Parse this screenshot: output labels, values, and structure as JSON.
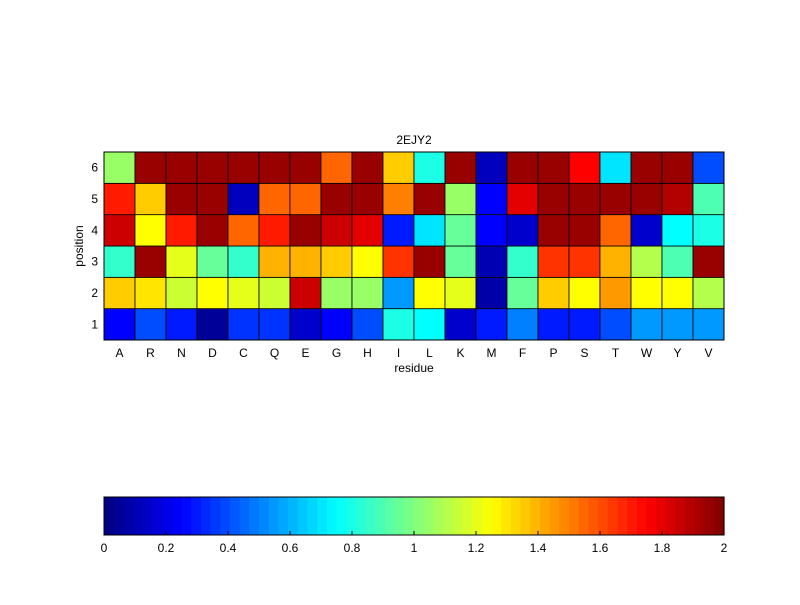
{
  "chart_data": {
    "type": "heatmap",
    "title": "2EJY2",
    "xlabel": "residue",
    "ylabel": "position",
    "x_categories": [
      "A",
      "R",
      "N",
      "D",
      "C",
      "Q",
      "E",
      "G",
      "H",
      "I",
      "L",
      "K",
      "M",
      "F",
      "P",
      "S",
      "T",
      "W",
      "Y",
      "V"
    ],
    "y_categories": [
      "1",
      "2",
      "3",
      "4",
      "5",
      "6"
    ],
    "values": [
      [
        0.25,
        0.4,
        0.3,
        0.05,
        0.35,
        0.35,
        0.15,
        0.25,
        0.4,
        0.8,
        0.75,
        0.15,
        0.3,
        0.5,
        0.3,
        0.3,
        0.4,
        0.55,
        0.55,
        0.55
      ],
      [
        1.35,
        1.3,
        1.15,
        1.25,
        1.2,
        1.15,
        1.85,
        1.05,
        1.05,
        0.55,
        1.25,
        1.2,
        0.08,
        0.95,
        1.35,
        1.25,
        1.45,
        1.25,
        1.25,
        1.1
      ],
      [
        0.85,
        1.95,
        1.2,
        0.95,
        0.85,
        1.4,
        1.4,
        1.35,
        1.25,
        1.65,
        1.95,
        0.95,
        0.1,
        0.85,
        1.65,
        1.65,
        1.4,
        1.1,
        0.9,
        1.95
      ],
      [
        1.85,
        1.25,
        1.7,
        1.95,
        1.55,
        1.7,
        1.95,
        1.85,
        1.8,
        0.3,
        0.7,
        0.95,
        0.25,
        0.15,
        1.95,
        1.95,
        1.55,
        0.15,
        0.75,
        0.8
      ],
      [
        1.7,
        1.35,
        1.95,
        1.95,
        0.12,
        1.55,
        1.55,
        1.95,
        1.95,
        1.5,
        1.95,
        1.05,
        0.25,
        1.8,
        1.95,
        1.95,
        1.95,
        1.95,
        1.9,
        0.9
      ],
      [
        1.05,
        1.95,
        1.95,
        1.95,
        1.95,
        1.95,
        1.95,
        1.55,
        1.95,
        1.35,
        0.8,
        1.95,
        0.12,
        1.95,
        1.95,
        1.75,
        0.7,
        1.95,
        1.95,
        0.4
      ]
    ],
    "colorbar": {
      "range": [
        0,
        2
      ],
      "tick_labels": [
        "0",
        "0.2",
        "0.4",
        "0.6",
        "0.8",
        "1",
        "1.2",
        "1.4",
        "1.6",
        "1.8",
        "2"
      ],
      "colormap": "jet",
      "orientation": "horizontal"
    },
    "grid": false,
    "legend": "none"
  }
}
